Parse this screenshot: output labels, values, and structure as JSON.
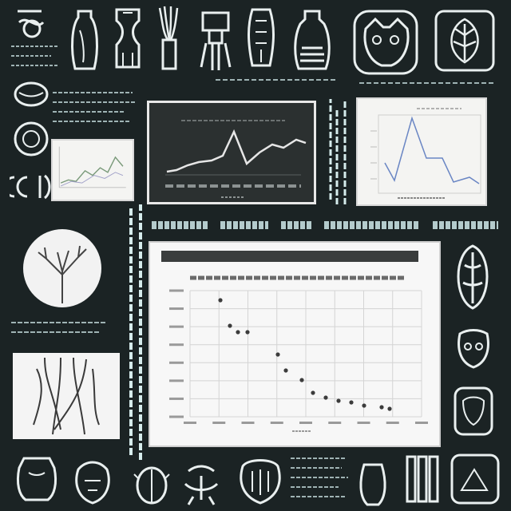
{
  "colors": {
    "background": "#1b2324",
    "chalk": "#e9efef",
    "chalk_dim": "#9fb3b4",
    "teal_text": "#cfe9ea",
    "grid": "#d4d4d4",
    "point": "#3c3c3c",
    "dark_chart_line": "#e6e6e6",
    "light_chart_line": "#6a86c4"
  },
  "icons": [
    "squiggle-icon",
    "jar-icon",
    "vase-icon",
    "broom-icon",
    "robot-icon",
    "skeleton-icon",
    "bottle-icon",
    "hut-icon",
    "cat-face-icon",
    "leaf-frame-icon",
    "nest-icon",
    "circle-rune-icon",
    "glyph-icon",
    "tree-circle-icon",
    "shell-icon",
    "mask-icon",
    "frame-icon",
    "pot-icon",
    "idol-icon",
    "beetle-icon",
    "figure-icon",
    "head-icon",
    "pillar-icon",
    "box-icon"
  ]
}
